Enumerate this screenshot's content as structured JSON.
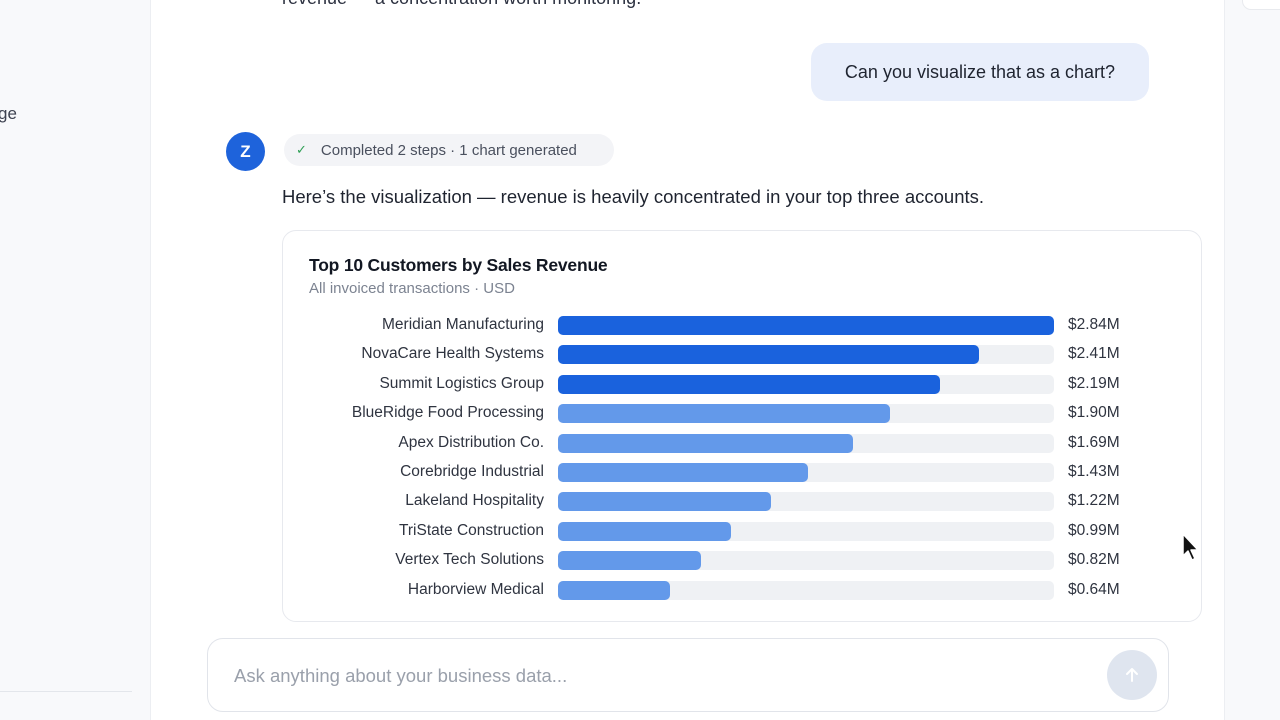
{
  "sidebar": {
    "partial_text": "ge"
  },
  "conversation": {
    "previous_text": "revenue — a concentration worth monitoring.",
    "user_message": "Can you visualize that as a chart?",
    "assistant": {
      "avatar_letter": "Z",
      "status": "Completed 2 steps · 1 chart generated",
      "response": "Here’s the visualization — revenue is heavily concentrated in your top three accounts."
    }
  },
  "chart_data": {
    "type": "bar",
    "orientation": "horizontal",
    "title": "Top 10 Customers by Sales Revenue",
    "subtitle": "All invoiced transactions · USD",
    "xlim": [
      0,
      2.84
    ],
    "categories": [
      "Meridian Manufacturing",
      "NovaCare Health Systems",
      "Summit Logistics Group",
      "BlueRidge Food Processing",
      "Apex Distribution Co.",
      "Corebridge Industrial",
      "Lakeland Hospitality",
      "TriState Construction",
      "Vertex Tech Solutions",
      "Harborview Medical"
    ],
    "values": [
      2.84,
      2.41,
      2.19,
      1.9,
      1.69,
      1.43,
      1.22,
      0.99,
      0.82,
      0.64
    ],
    "value_labels": [
      "$2.84M",
      "$2.41M",
      "$2.19M",
      "$1.90M",
      "$1.69M",
      "$1.43M",
      "$1.22M",
      "$0.99M",
      "$0.82M",
      "$0.64M"
    ],
    "colors": {
      "top_three": "#1a62dd",
      "others": "#6399ea",
      "track": "#eff1f4"
    },
    "grid": false,
    "legend": "none"
  },
  "input": {
    "placeholder": "Ask anything about your business data..."
  },
  "icons": {
    "send": "arrow-up-icon",
    "status": "check-icon",
    "cursor": "mouse-pointer-icon"
  }
}
